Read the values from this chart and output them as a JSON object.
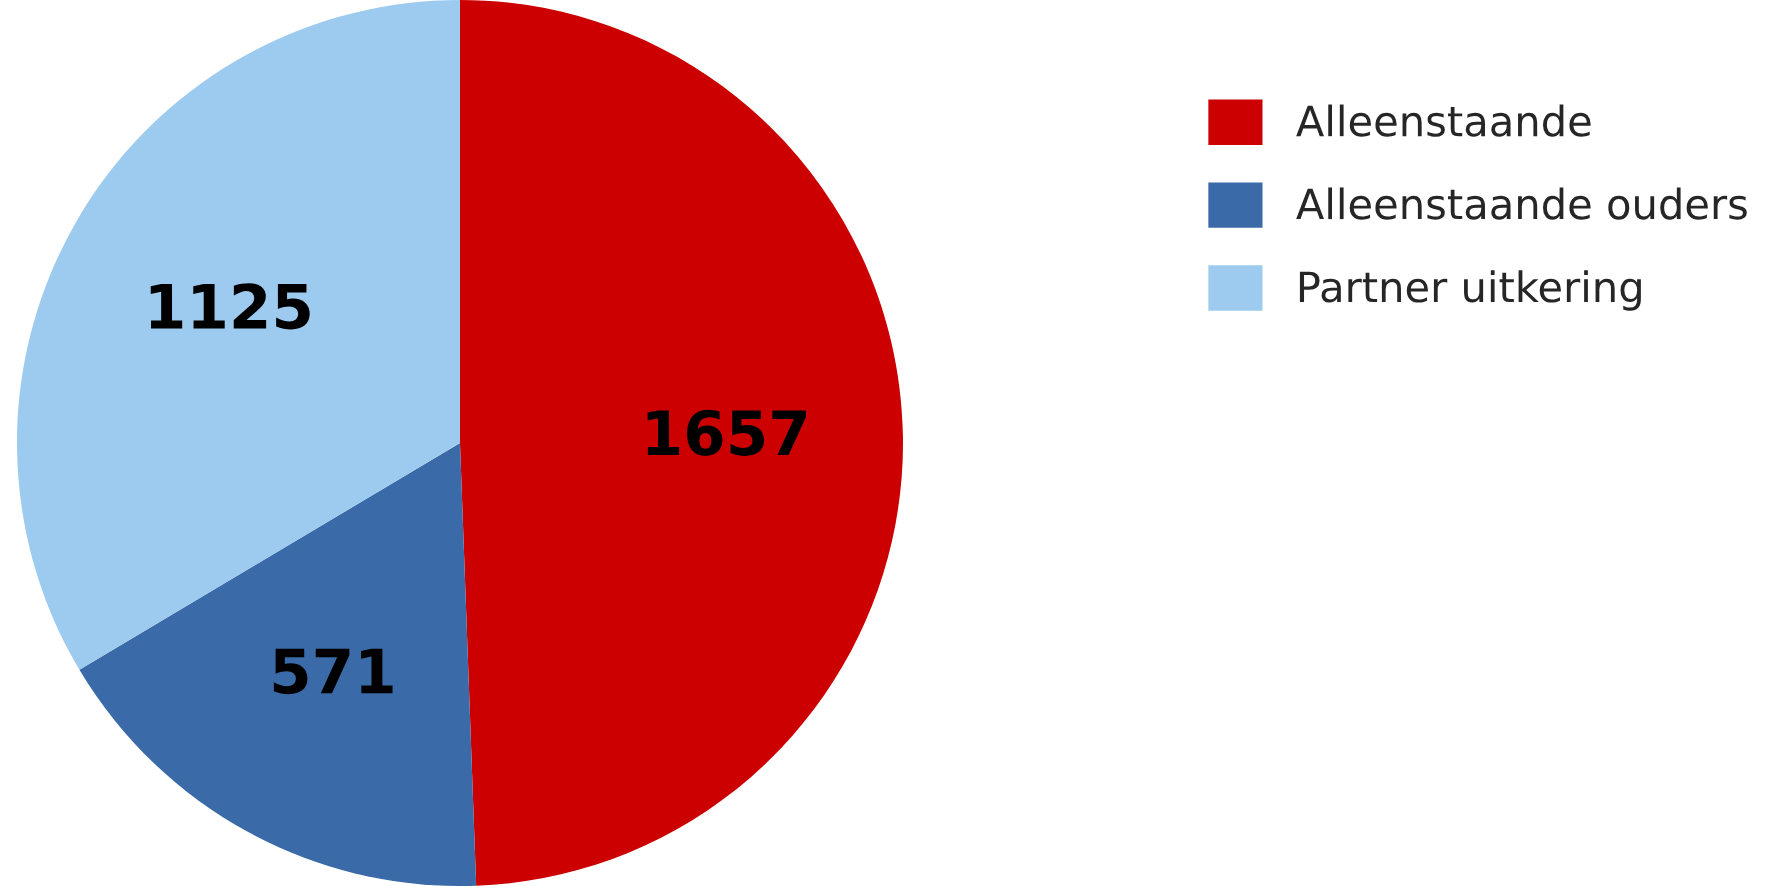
{
  "chart_data": {
    "type": "pie",
    "categories": [
      "Alleenstaande",
      "Alleenstaande ouders",
      "Partner uitkering"
    ],
    "values": [
      1657,
      571,
      1125
    ],
    "colors": [
      "#cc0000",
      "#3a6aa7",
      "#9dcbef"
    ],
    "data_labels": true,
    "legend": "top right"
  }
}
